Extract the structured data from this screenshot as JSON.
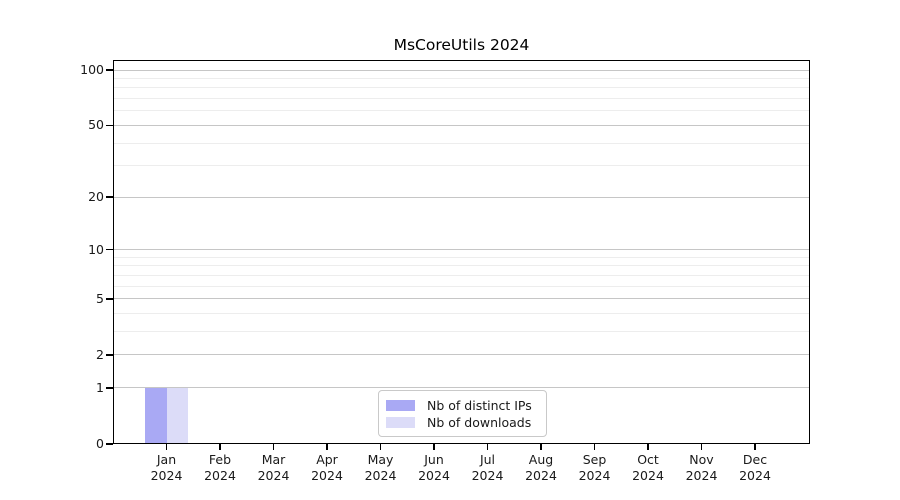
{
  "chart_data": {
    "type": "bar",
    "title": "MsCoreUtils 2024",
    "year": "2024",
    "months": [
      "Jan",
      "Feb",
      "Mar",
      "Apr",
      "May",
      "Jun",
      "Jul",
      "Aug",
      "Sep",
      "Oct",
      "Nov",
      "Dec"
    ],
    "categories": [
      "Jan 2024",
      "Feb 2024",
      "Mar 2024",
      "Apr 2024",
      "May 2024",
      "Jun 2024",
      "Jul 2024",
      "Aug 2024",
      "Sep 2024",
      "Oct 2024",
      "Nov 2024",
      "Dec 2024"
    ],
    "series": [
      {
        "name": "Nb of distinct IPs",
        "color": "#a9a9f4",
        "values": [
          1,
          0,
          0,
          0,
          0,
          0,
          0,
          0,
          0,
          0,
          0,
          0
        ]
      },
      {
        "name": "Nb of downloads",
        "color": "#dcdcf8",
        "values": [
          1,
          0,
          0,
          0,
          0,
          0,
          0,
          0,
          0,
          0,
          0,
          0
        ]
      }
    ],
    "xlabel": "",
    "ylabel": "",
    "yscale": "log1p",
    "yticks": [
      0,
      1,
      2,
      5,
      10,
      20,
      50,
      100
    ],
    "minor_gridlines": [
      3,
      4,
      6,
      7,
      8,
      9,
      30,
      40,
      60,
      70,
      80,
      90
    ],
    "ylim": [
      0,
      113
    ],
    "grid": "horizontal",
    "legend_position": "inside-bottom-center"
  },
  "colors": {
    "distinct_ips": "#a9a9f4",
    "downloads": "#dcdcf8",
    "grid_major": "#c6c6c6",
    "grid_minor": "#ededed",
    "axis": "#000000",
    "text": "#1a1a1a",
    "legend_border": "#c9c9c9",
    "background": "#ffffff"
  }
}
